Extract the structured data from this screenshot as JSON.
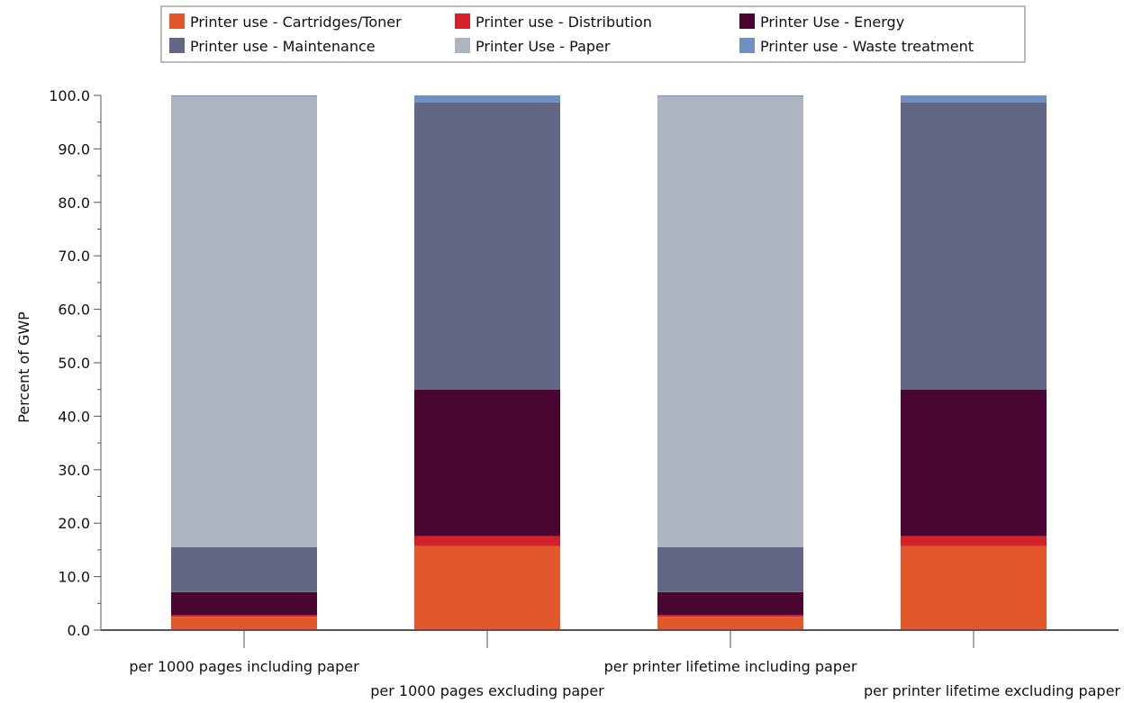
{
  "chart_data": {
    "type": "bar",
    "stacked": true,
    "ylabel": "Percent of GWP",
    "ylim": [
      0,
      100
    ],
    "yticks": [
      "0.0",
      "10.0",
      "20.0",
      "30.0",
      "40.0",
      "50.0",
      "60.0",
      "70.0",
      "80.0",
      "90.0",
      "100.0"
    ],
    "categories": [
      "per 1000 pages including paper",
      "per 1000 pages excluding paper",
      "per printer lifetime including paper",
      "per printer lifetime excluding paper"
    ],
    "legend_position": "top-center",
    "series": [
      {
        "name": "Printer use - Cartridges/Toner",
        "color": "#e2572c",
        "values": [
          2.5,
          15.7,
          2.5,
          15.7
        ]
      },
      {
        "name": "Printer use - Distribution",
        "color": "#d42028",
        "values": [
          0.3,
          1.9,
          0.3,
          1.9
        ]
      },
      {
        "name": "Printer Use - Energy",
        "color": "#4a0530",
        "values": [
          4.3,
          27.4,
          4.3,
          27.4
        ]
      },
      {
        "name": "Printer use - Maintenance",
        "color": "#636786",
        "values": [
          8.4,
          53.7,
          8.4,
          53.7
        ]
      },
      {
        "name": "Printer Use - Paper",
        "color": "#adb6c0",
        "values": [
          84.3,
          0,
          84.3,
          0
        ]
      },
      {
        "name": "Printer use - Waste treatment",
        "color": "#6e8fc0",
        "values": [
          0.2,
          1.3,
          0.2,
          1.3
        ]
      }
    ]
  }
}
